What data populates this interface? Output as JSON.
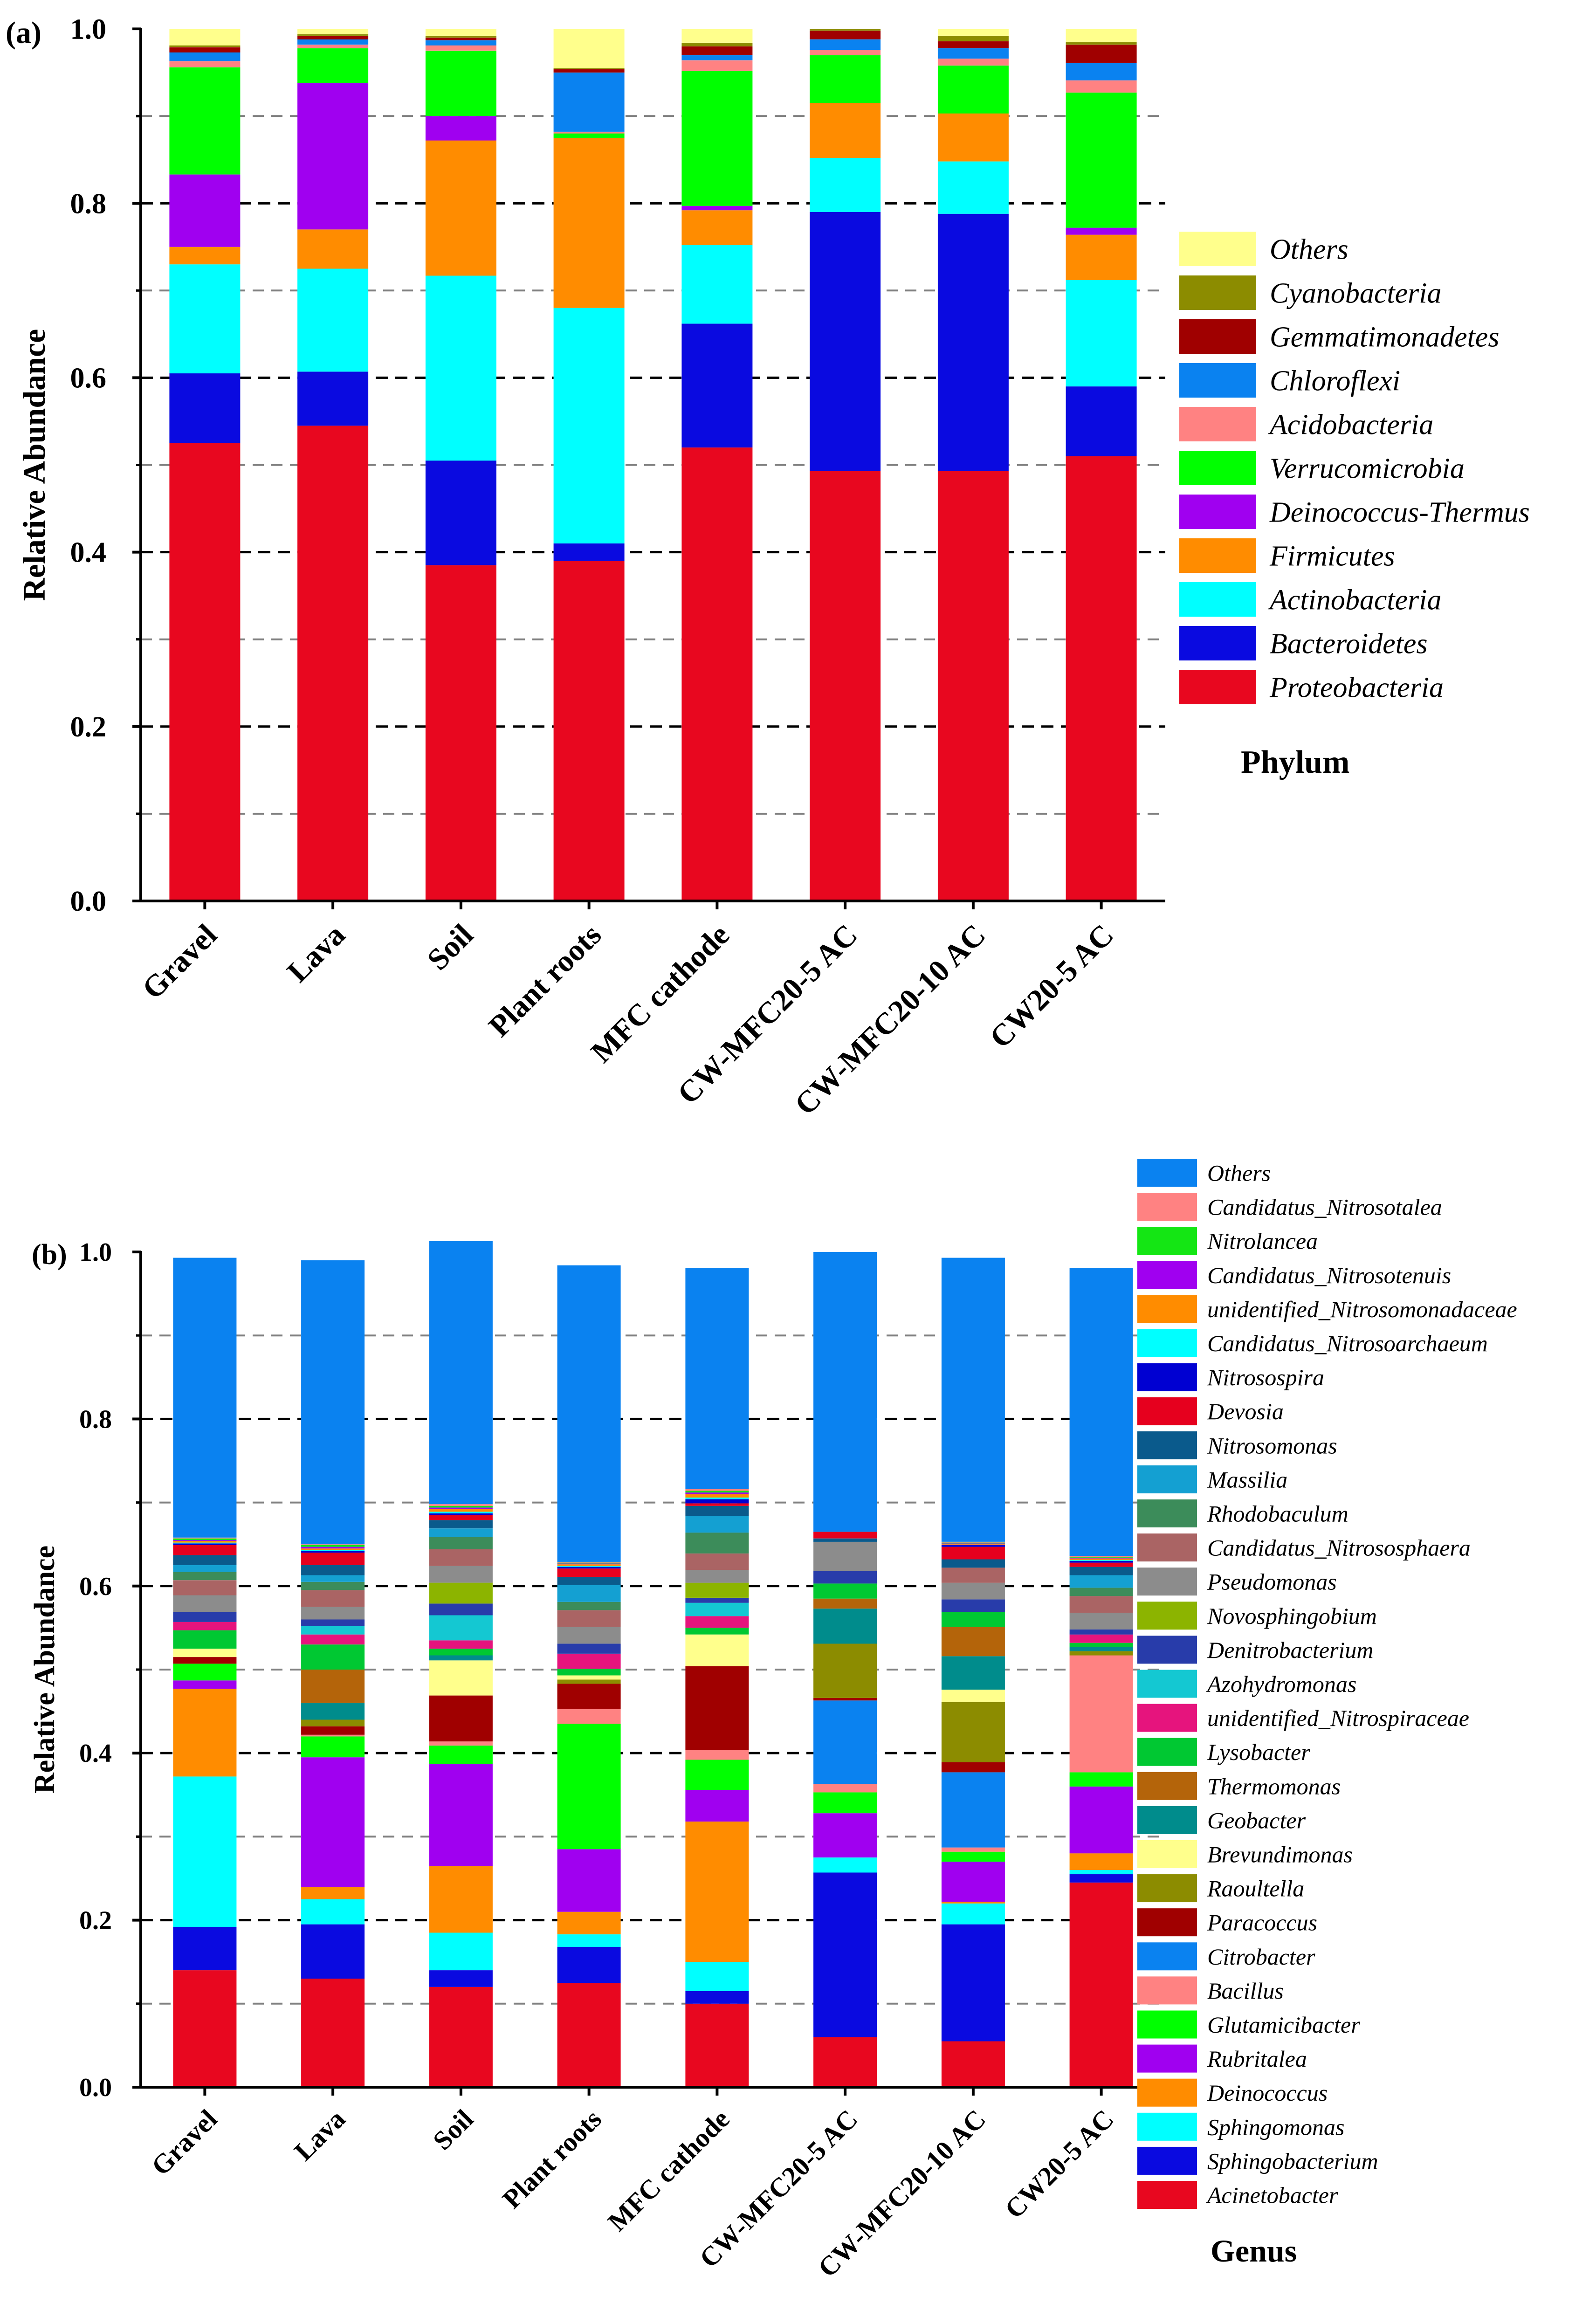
{
  "chart_data": [
    {
      "type": "bar",
      "stacked": true,
      "panel_label": "(a)",
      "ylabel": "Relative Abundance",
      "ylim": [
        0,
        1.0
      ],
      "yticks": [
        "0.0",
        "0.2",
        "0.4",
        "0.6",
        "0.8",
        "1.0"
      ],
      "grid": "dashed horizontal at 0.1 steps",
      "categories": [
        "Gravel",
        "Lava",
        "Soil",
        "Plant roots",
        "MFC cathode",
        "CW-MFC20-5 AC",
        "CW-MFC20-10 AC",
        "CW20-5 AC"
      ],
      "legend_title": "Phylum",
      "series": [
        {
          "name": "Proteobacteria",
          "color": "#e8071f",
          "values": [
            0.525,
            0.545,
            0.385,
            0.39,
            0.52,
            0.493,
            0.493,
            0.51
          ]
        },
        {
          "name": "Bacteroidetes",
          "color": "#0a0ae0",
          "values": [
            0.08,
            0.062,
            0.12,
            0.02,
            0.142,
            0.297,
            0.295,
            0.08
          ]
        },
        {
          "name": "Actinobacteria",
          "color": "#00ffff",
          "values": [
            0.125,
            0.118,
            0.212,
            0.27,
            0.09,
            0.062,
            0.06,
            0.122
          ]
        },
        {
          "name": "Firmicutes",
          "color": "#ff8c00",
          "values": [
            0.02,
            0.045,
            0.155,
            0.195,
            0.04,
            0.063,
            0.055,
            0.052
          ]
        },
        {
          "name": "Deinococcus-Thermus",
          "color": "#a000f0",
          "values": [
            0.083,
            0.168,
            0.028,
            0.0,
            0.005,
            0.0,
            0.0,
            0.008
          ]
        },
        {
          "name": "Verrucomicrobia",
          "color": "#00ff00",
          "values": [
            0.123,
            0.04,
            0.075,
            0.005,
            0.155,
            0.055,
            0.055,
            0.155
          ]
        },
        {
          "name": "Acidobacteria",
          "color": "#ff8282",
          "values": [
            0.007,
            0.004,
            0.006,
            0.002,
            0.012,
            0.006,
            0.008,
            0.014
          ]
        },
        {
          "name": "Chloroflexi",
          "color": "#0a82f0",
          "values": [
            0.01,
            0.006,
            0.006,
            0.068,
            0.006,
            0.012,
            0.012,
            0.02
          ]
        },
        {
          "name": "Gemmatimonadetes",
          "color": "#a00000",
          "values": [
            0.006,
            0.004,
            0.003,
            0.004,
            0.01,
            0.01,
            0.008,
            0.021
          ]
        },
        {
          "name": "Cyanobacteria",
          "color": "#8c8c00",
          "values": [
            0.002,
            0.002,
            0.002,
            0.001,
            0.004,
            0.002,
            0.006,
            0.003
          ]
        },
        {
          "name": "Others",
          "color": "#ffff8c",
          "values": [
            0.019,
            0.006,
            0.008,
            0.045,
            0.016,
            0.0,
            0.008,
            0.015
          ]
        }
      ]
    },
    {
      "type": "bar",
      "stacked": true,
      "panel_label": "(b)",
      "ylabel": "Relative Abundance",
      "ylim": [
        0,
        1.0
      ],
      "yticks": [
        "0.0",
        "0.2",
        "0.4",
        "0.6",
        "0.8",
        "1.0"
      ],
      "grid": "dashed horizontal at 0.1 steps",
      "categories": [
        "Gravel",
        "Lava",
        "Soil",
        "Plant roots",
        "MFC cathode",
        "CW-MFC20-5 AC",
        "CW-MFC20-10 AC",
        "CW20-5 AC"
      ],
      "legend_title": "Genus",
      "series": [
        {
          "name": "Acinetobacter",
          "color": "#e8071f",
          "values": [
            0.14,
            0.13,
            0.12,
            0.125,
            0.1,
            0.06,
            0.055,
            0.245
          ]
        },
        {
          "name": "Sphingobacterium",
          "color": "#0a0ae0",
          "values": [
            0.052,
            0.065,
            0.02,
            0.043,
            0.015,
            0.197,
            0.14,
            0.01
          ]
        },
        {
          "name": "Sphingomonas",
          "color": "#00ffff",
          "values": [
            0.18,
            0.03,
            0.045,
            0.015,
            0.035,
            0.018,
            0.025,
            0.005
          ]
        },
        {
          "name": "Deinococcus",
          "color": "#ff8c00",
          "values": [
            0.105,
            0.015,
            0.08,
            0.027,
            0.168,
            0.0,
            0.002,
            0.02
          ]
        },
        {
          "name": "Rubritalea",
          "color": "#a000f0",
          "values": [
            0.01,
            0.155,
            0.122,
            0.075,
            0.038,
            0.053,
            0.048,
            0.08
          ]
        },
        {
          "name": "Glutamicibacter",
          "color": "#00ff00",
          "values": [
            0.02,
            0.025,
            0.022,
            0.15,
            0.036,
            0.025,
            0.012,
            0.017
          ]
        },
        {
          "name": "Bacillus",
          "color": "#ff8282",
          "values": [
            0.0,
            0.002,
            0.005,
            0.018,
            0.012,
            0.01,
            0.005,
            0.14
          ]
        },
        {
          "name": "Citrobacter",
          "color": "#0a82f0",
          "values": [
            0.0,
            0.0,
            0.0,
            0.0,
            0.0,
            0.1,
            0.09,
            0.0
          ]
        },
        {
          "name": "Paracoccus",
          "color": "#a00000",
          "values": [
            0.008,
            0.01,
            0.055,
            0.03,
            0.1,
            0.003,
            0.012,
            0.0
          ]
        },
        {
          "name": "Raoultella",
          "color": "#8c8c00",
          "values": [
            0.0,
            0.008,
            0.0,
            0.005,
            0.0,
            0.065,
            0.072,
            0.005
          ]
        },
        {
          "name": "Brevundimonas",
          "color": "#ffff8c",
          "values": [
            0.01,
            0.0,
            0.042,
            0.005,
            0.038,
            0.0,
            0.015,
            0.0
          ]
        },
        {
          "name": "Geobacter",
          "color": "#008c8c",
          "values": [
            0.0,
            0.02,
            0.006,
            0.0,
            0.0,
            0.042,
            0.04,
            0.005
          ]
        },
        {
          "name": "Thermomonas",
          "color": "#b4640a",
          "values": [
            0.0,
            0.04,
            0.0,
            0.0,
            0.0,
            0.012,
            0.035,
            0.0
          ]
        },
        {
          "name": "Lysobacter",
          "color": "#00c832",
          "values": [
            0.022,
            0.03,
            0.008,
            0.008,
            0.008,
            0.018,
            0.018,
            0.005
          ]
        },
        {
          "name": "unidentified_Nitrospiraceae",
          "color": "#e6147d",
          "values": [
            0.01,
            0.012,
            0.01,
            0.018,
            0.014,
            0.0,
            0.0,
            0.01
          ]
        },
        {
          "name": "Azohydromonas",
          "color": "#14c8d2",
          "values": [
            0.0,
            0.01,
            0.03,
            0.0,
            0.016,
            0.0,
            0.0,
            0.0
          ]
        },
        {
          "name": "Denitrobacterium",
          "color": "#283caa",
          "values": [
            0.012,
            0.008,
            0.014,
            0.012,
            0.006,
            0.015,
            0.015,
            0.006
          ]
        },
        {
          "name": "Novosphingobium",
          "color": "#8cb400",
          "values": [
            0.0,
            0.0,
            0.025,
            0.0,
            0.018,
            0.0,
            0.0,
            0.0
          ]
        },
        {
          "name": "Pseudomonas",
          "color": "#8c8c8c",
          "values": [
            0.02,
            0.015,
            0.02,
            0.02,
            0.015,
            0.035,
            0.02,
            0.02
          ]
        },
        {
          "name": "Candidatus_Nitrososphaera",
          "color": "#aa6464",
          "values": [
            0.018,
            0.02,
            0.02,
            0.02,
            0.02,
            0.0,
            0.018,
            0.02
          ]
        },
        {
          "name": "Rhodobaculum",
          "color": "#3c8c5a",
          "values": [
            0.01,
            0.01,
            0.015,
            0.01,
            0.025,
            0.0,
            0.0,
            0.01
          ]
        },
        {
          "name": "Massilia",
          "color": "#14a0d2",
          "values": [
            0.008,
            0.008,
            0.01,
            0.02,
            0.02,
            0.0,
            0.0,
            0.015
          ]
        },
        {
          "name": "Nitrosomonas",
          "color": "#0a5a8c",
          "values": [
            0.012,
            0.012,
            0.01,
            0.01,
            0.012,
            0.004,
            0.01,
            0.01
          ]
        },
        {
          "name": "Devosia",
          "color": "#e6001e",
          "values": [
            0.012,
            0.015,
            0.006,
            0.01,
            0.003,
            0.008,
            0.015,
            0.005
          ]
        },
        {
          "name": "Nitrosospira",
          "color": "#0000d2",
          "values": [
            0.002,
            0.002,
            0.002,
            0.002,
            0.005,
            0.0,
            0.002,
            0.002
          ]
        },
        {
          "name": "Candidatus_Nitrosoarchaeum",
          "color": "#00ffff",
          "values": [
            0.001,
            0.001,
            0.002,
            0.001,
            0.002,
            0.0,
            0.0,
            0.001
          ]
        },
        {
          "name": "unidentified_Nitrosomonadaceae",
          "color": "#ff8c00",
          "values": [
            0.002,
            0.002,
            0.003,
            0.002,
            0.004,
            0.0,
            0.001,
            0.002
          ]
        },
        {
          "name": "Candidatus_Nitrosotenuis",
          "color": "#a000f0",
          "values": [
            0.001,
            0.002,
            0.002,
            0.001,
            0.002,
            0.0,
            0.001,
            0.001
          ]
        },
        {
          "name": "Nitrolancea",
          "color": "#14e614",
          "values": [
            0.002,
            0.002,
            0.002,
            0.001,
            0.002,
            0.0,
            0.001,
            0.001
          ]
        },
        {
          "name": "Candidatus_Nitrosotalea",
          "color": "#ff8282",
          "values": [
            0.001,
            0.001,
            0.002,
            0.001,
            0.002,
            0.0,
            0.001,
            0.001
          ]
        },
        {
          "name": "Others",
          "color": "#0a82f0",
          "values": [
            0.335,
            0.34,
            0.315,
            0.355,
            0.265,
            0.335,
            0.34,
            0.345
          ]
        }
      ]
    }
  ]
}
